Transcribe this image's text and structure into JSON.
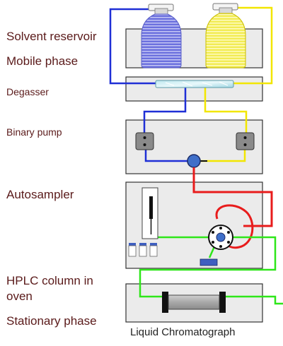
{
  "labels": {
    "solvent_reservoir": "Solvent reservoir",
    "mobile_phase": "Mobile phase",
    "degasser": "Degasser",
    "binary_pump": "Binary pump",
    "autosampler": "Autosampler",
    "hplc_column_line1": "HPLC column in",
    "hplc_column_line2": "oven",
    "stationary_phase": "Stationary phase",
    "caption": "Liquid Chromatograph"
  },
  "colors": {
    "module_fill": "#ebebeb",
    "module_stroke": "#333333",
    "solvent_a": "#1f2fd6",
    "solvent_b": "#f2e600",
    "bottle_a": "#7b7fe0",
    "bottle_b": "#f7f27a",
    "sample_line": "#e81c1c",
    "flow_line": "#2ee619",
    "label_text": "#5a1a1a"
  }
}
